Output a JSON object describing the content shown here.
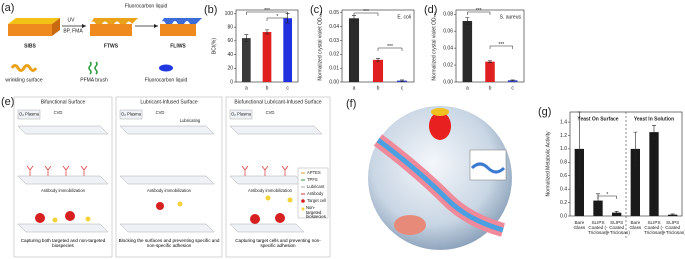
{
  "panel_a": {
    "label": "(a)",
    "uv": "UV",
    "reagents": "BP, FMA",
    "fluorocarbon": "Fluorocarbon liquid",
    "sibs": "SIBS",
    "ftws": "FTWS",
    "fliws": "FLIWS",
    "wrinkling": "wrinkling surface",
    "pfma": "PFMA brush",
    "liquid": "Fluorocarbon liquid"
  },
  "panel_e": {
    "label": "(e)",
    "columns": [
      {
        "title": "Bifunctional Surface",
        "steps": [
          "Antibody immobilization",
          "Capturing both targeted and non-targeted biospecies"
        ]
      },
      {
        "title": "Lubricant-Infused Surface",
        "steps": [
          "Antibody immobilization",
          "Blocking the surfaces and preventing specific and non-specific adhesion"
        ]
      },
      {
        "title": "Biofunctional Lubricant-Infused Surface",
        "steps": [
          "Antibody immobilization",
          "Capturing target cells and preventing non-specific adhesion"
        ]
      }
    ],
    "plasma": "O₂ Plasma",
    "cvd": "CVD",
    "lubricating": "Lubricating",
    "legend": [
      "APTES",
      "TPFS",
      "Lubricant",
      "Antibody",
      "Target cell",
      "Non-targeted biospecies"
    ]
  },
  "panel_f": {
    "label": "(f)"
  },
  "chart_data": [
    {
      "type": "bar",
      "label": "(b)",
      "ylabel": "BCI(%)",
      "categories": [
        "a",
        "b",
        "c"
      ],
      "values": [
        64,
        73,
        93
      ],
      "errors": [
        5,
        3,
        7
      ],
      "colors": [
        "#3a3a3a",
        "#e02020",
        "#2030e0"
      ],
      "ylim": [
        0,
        105
      ],
      "yticks": [
        0,
        20,
        40,
        60,
        80,
        100
      ],
      "annotations": [
        "***",
        "*"
      ]
    },
    {
      "type": "bar",
      "label": "(c)",
      "title": "E. coli",
      "ylabel": "Normalized crystal violet OD₅₉₀",
      "categories": [
        "a",
        "b",
        "c"
      ],
      "values": [
        0.046,
        0.016,
        0.001
      ],
      "errors": [
        0.002,
        0.001,
        0.0005
      ],
      "colors": [
        "#2a2a2a",
        "#e02020",
        "#3040c0"
      ],
      "ylim": [
        0,
        0.052
      ],
      "yticks": [
        {
          "value": 0,
          "label": "0.00"
        },
        {
          "value": 0.01,
          "label": "0.01"
        },
        {
          "value": 0.02,
          "label": "0.02"
        },
        {
          "value": 0.03,
          "label": "0.03"
        },
        {
          "value": 0.04,
          "label": "0.04"
        },
        {
          "value": 0.05,
          "label": "0.05"
        }
      ],
      "annotations": [
        "***",
        "***"
      ]
    },
    {
      "type": "bar",
      "label": "(d)",
      "title": "S. aureus",
      "ylabel": "Normalized crystal violet OD₅₉₀",
      "categories": [
        "a",
        "b",
        "c"
      ],
      "values": [
        0.072,
        0.024,
        0.002
      ],
      "errors": [
        0.004,
        0.001,
        0.0005
      ],
      "colors": [
        "#2a2a2a",
        "#e02020",
        "#3040c0"
      ],
      "ylim": [
        0,
        0.085
      ],
      "yticks": [
        {
          "value": 0,
          "label": "0.00"
        },
        {
          "value": 0.02,
          "label": "0.02"
        },
        {
          "value": 0.04,
          "label": "0.04"
        },
        {
          "value": 0.06,
          "label": "0.06"
        },
        {
          "value": 0.08,
          "label": "0.08"
        }
      ],
      "annotations": [
        "***",
        "***"
      ]
    },
    {
      "type": "bar",
      "label": "(g)",
      "titles": [
        "Yeast On Surface",
        "Yeast In Solution"
      ],
      "ylabel": "Normalized Metabolic Activity",
      "categories": [
        "Bare Glass",
        "SLIPS Coated (-Triclosan)",
        "SLIPS Coated (+Triclosan)",
        "Bare Glass",
        "SLIPS Coated (-Triclosan)",
        "SLIPS Coated (+Triclosan)"
      ],
      "values": [
        1.0,
        0.23,
        0.05,
        1.0,
        1.25,
        0.02
      ],
      "errors": [
        0.55,
        0.1,
        0.02,
        0.25,
        0.1,
        0.01
      ],
      "colors": [
        "#1a1a1a",
        "#1a1a1a",
        "#1a1a1a",
        "#1a1a1a",
        "#1a1a1a",
        "#1a1a1a"
      ],
      "ylim": [
        0,
        1.55
      ],
      "yticks": [
        {
          "value": 0,
          "label": "0.0"
        },
        {
          "value": 0.2,
          "label": "0.2"
        },
        {
          "value": 0.4,
          "label": "0.4"
        },
        {
          "value": 0.6,
          "label": "0.6"
        },
        {
          "value": 0.8,
          "label": "0.8"
        },
        {
          "value": 1.0,
          "label": "1.0"
        },
        {
          "value": 1.2,
          "label": "1.2"
        },
        {
          "value": 1.4,
          "label": "1.4"
        }
      ],
      "annotations": [
        "*"
      ]
    }
  ]
}
